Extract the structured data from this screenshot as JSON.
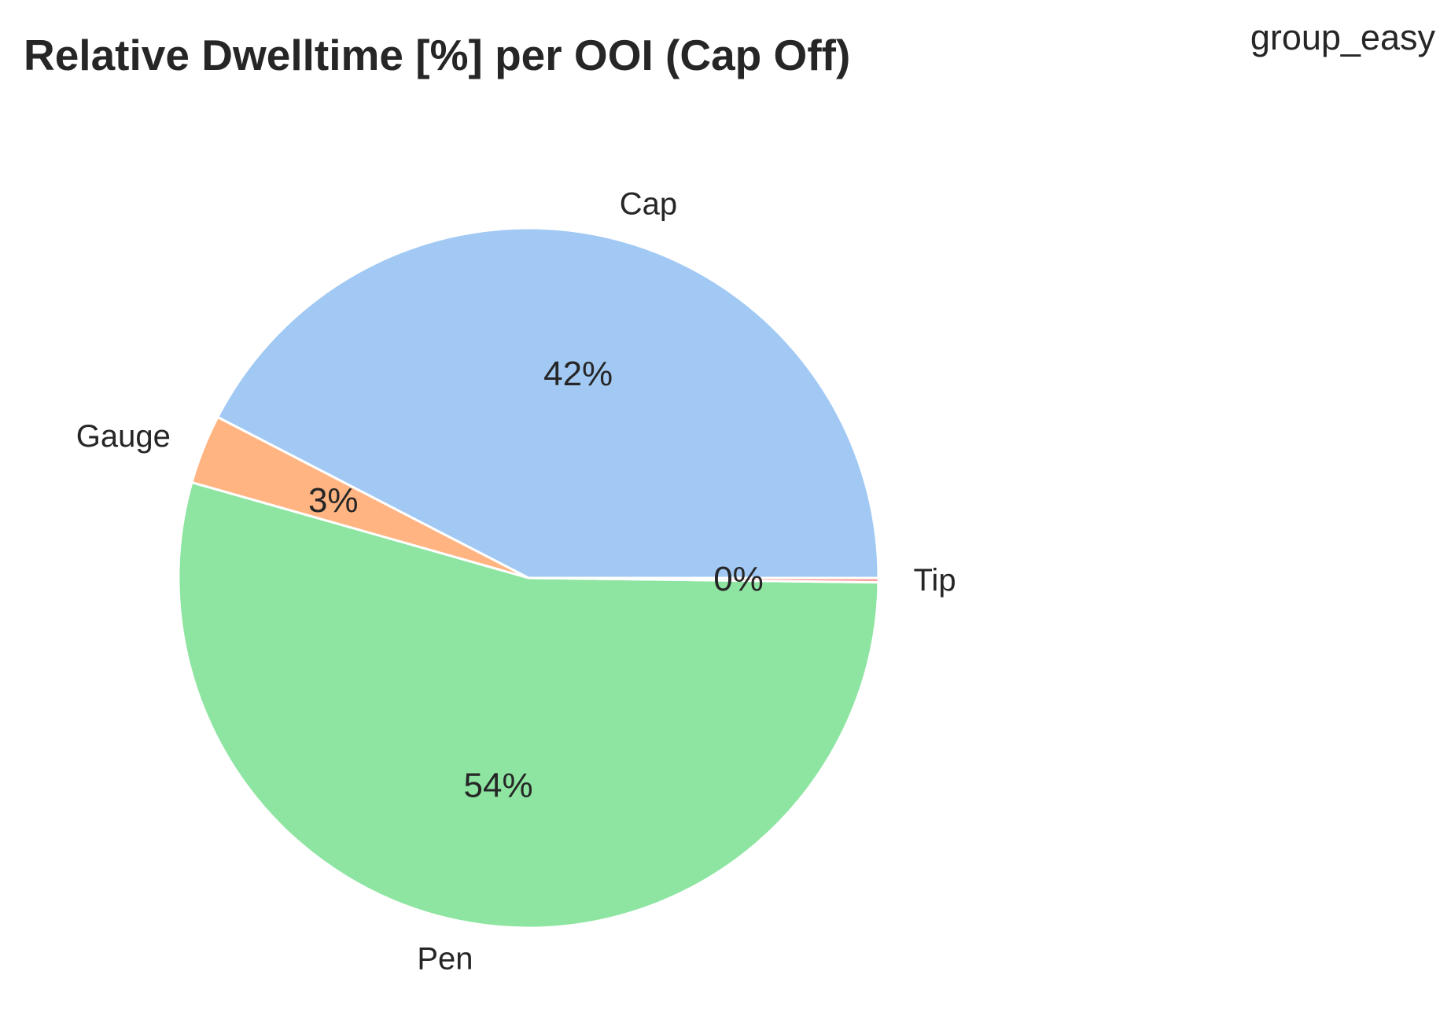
{
  "chart_data": {
    "type": "pie",
    "title": "Relative Dwelltime [%] per OOI (Cap Off)",
    "group_label": "group_easy",
    "start_angle_deg": 0,
    "direction": "counterclockwise",
    "slices": [
      {
        "label": "Cap",
        "value": 42.4,
        "pct_label": "42%",
        "color": "#a1c9f4"
      },
      {
        "label": "Gauge",
        "value": 3.2,
        "pct_label": "3%",
        "color": "#ffb482"
      },
      {
        "label": "Pen",
        "value": 54.2,
        "pct_label": "54%",
        "color": "#8de5a1"
      },
      {
        "label": "Tip",
        "value": 0.2,
        "pct_label": "0%",
        "color": "#ff9f9b"
      }
    ],
    "edge_color": "#ffffff"
  }
}
